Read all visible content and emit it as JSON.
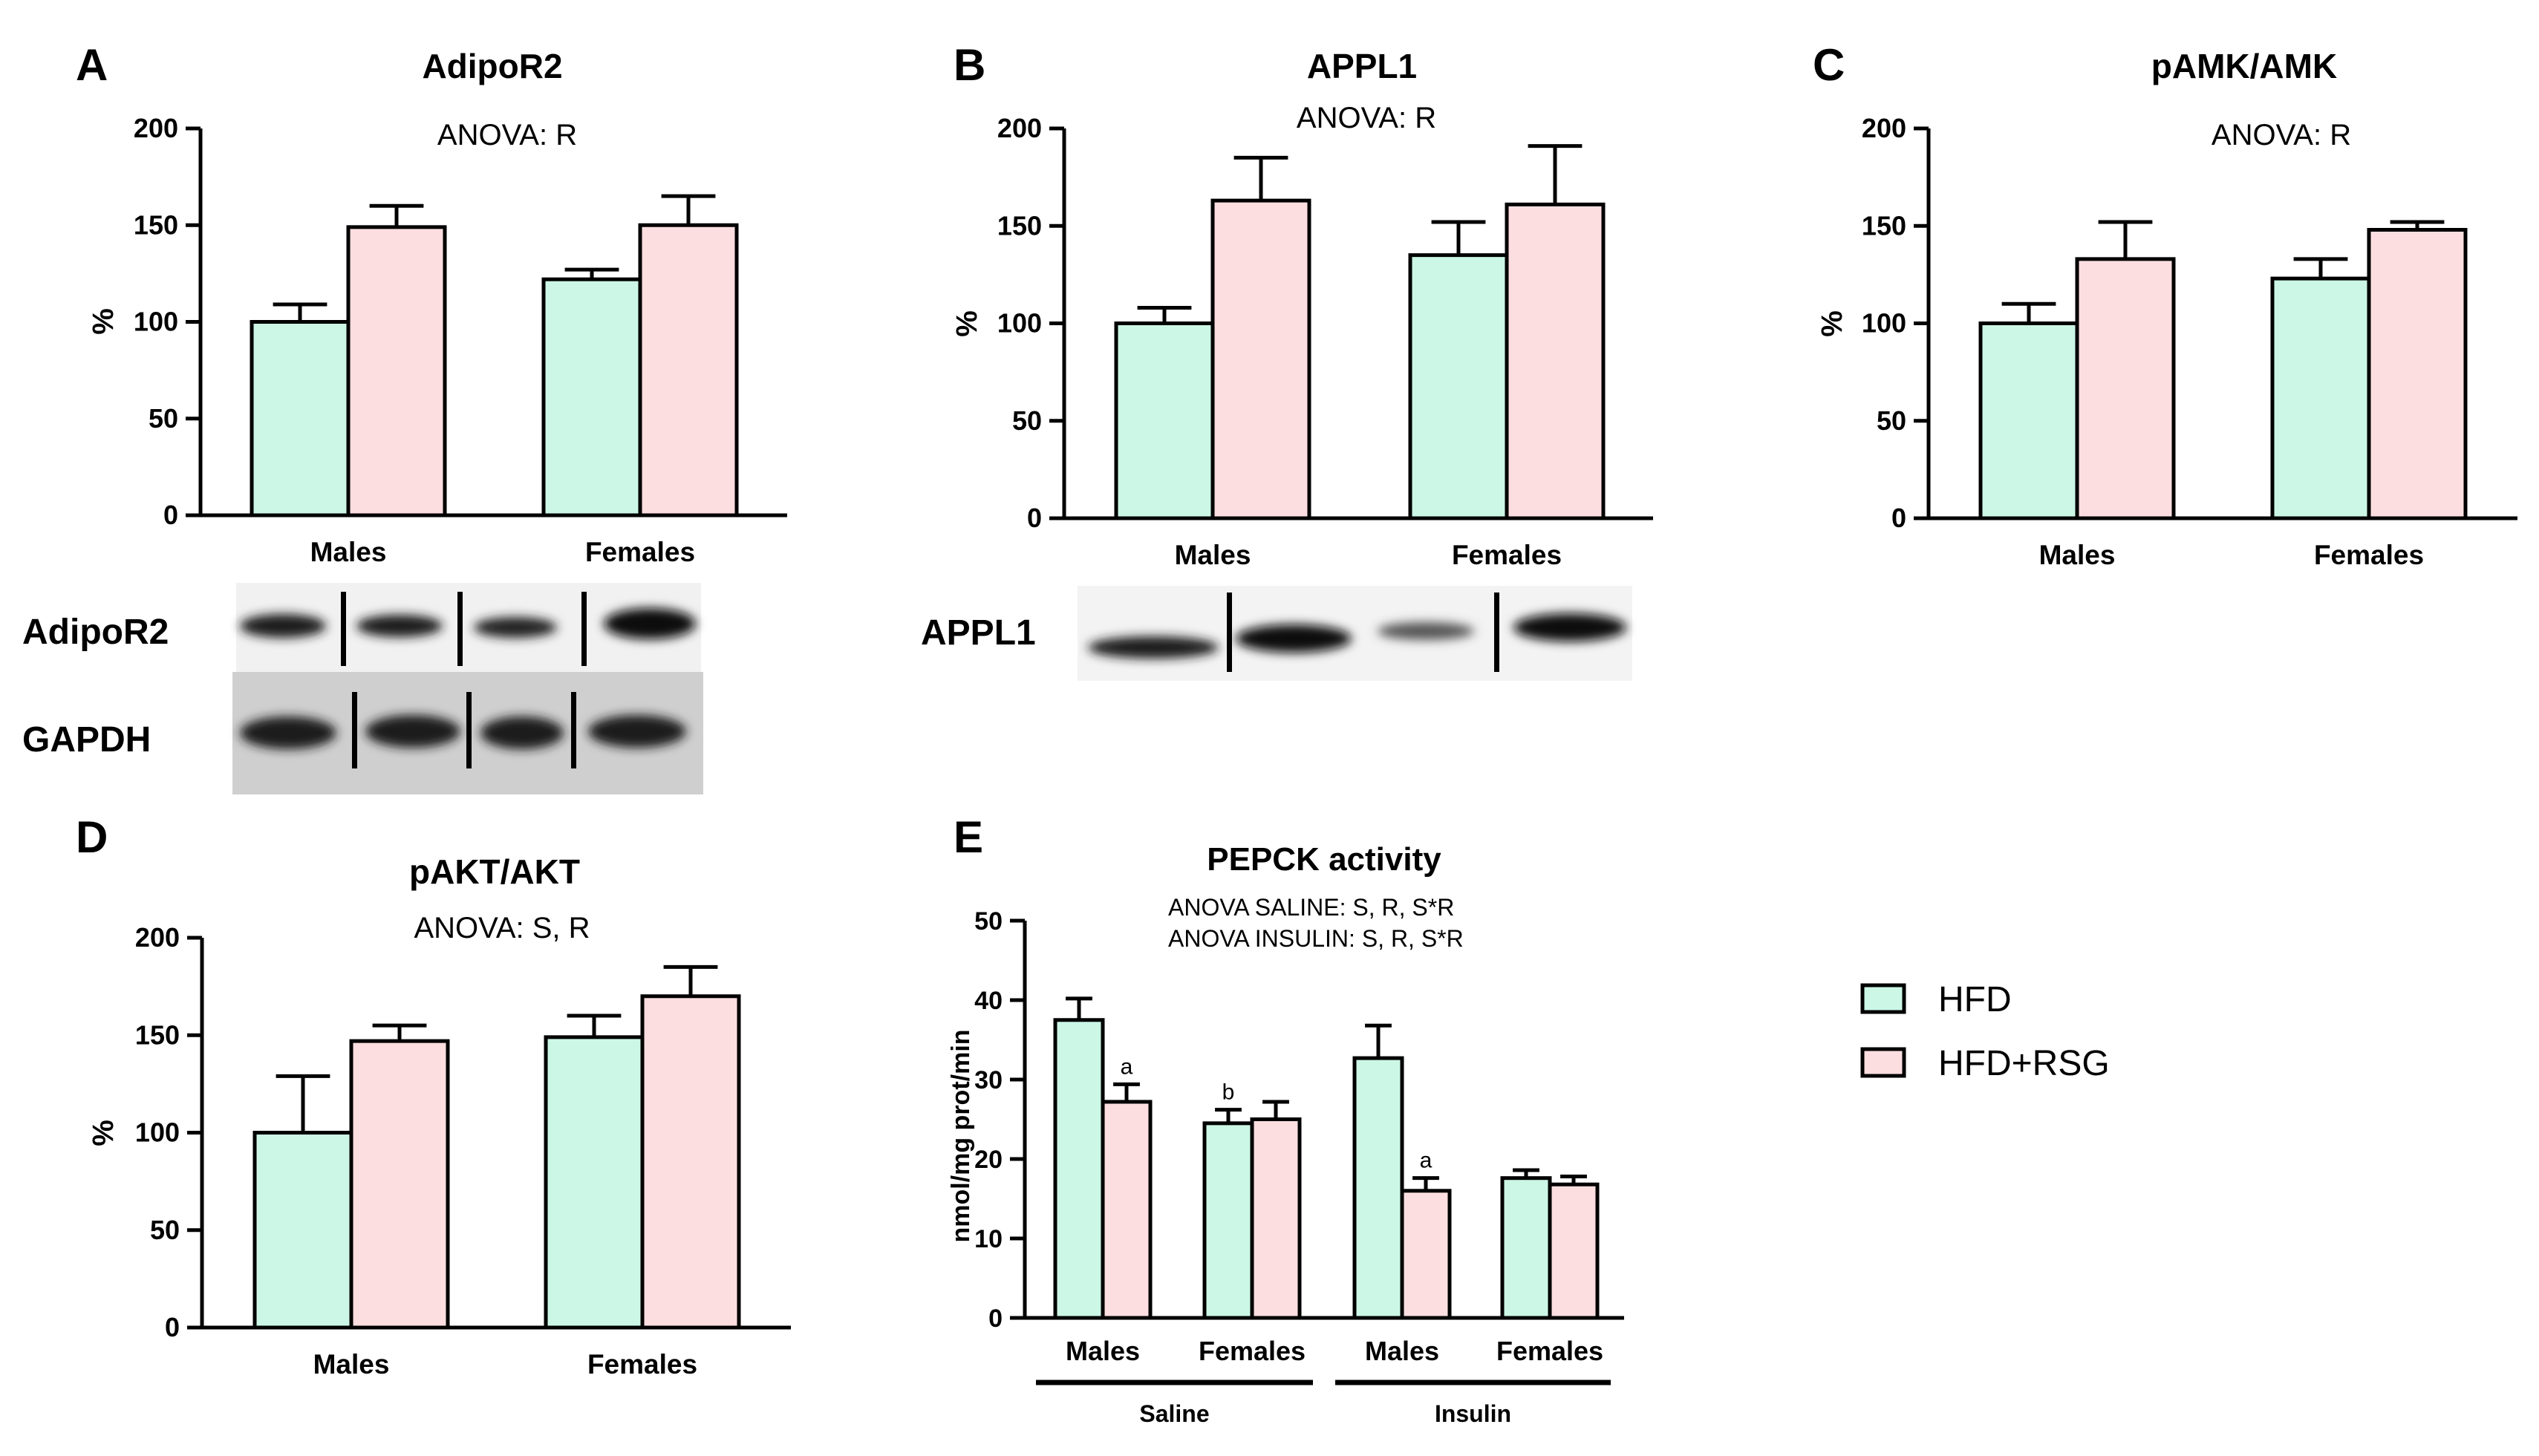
{
  "colors": {
    "hfd": "#ccf7e6",
    "rsg": "#fcdee0",
    "axis": "#000000"
  },
  "legend": {
    "items": [
      {
        "label": "HFD",
        "key": "hfd"
      },
      {
        "label": "HFD+RSG",
        "key": "rsg"
      }
    ]
  },
  "chart_data": [
    {
      "panel": "A",
      "title": "AdipoR2",
      "anova": [
        "ANOVA: R"
      ],
      "type": "bar",
      "ylabel": "%",
      "ylim": [
        0,
        200
      ],
      "yticks": [
        0,
        50,
        100,
        150,
        200
      ],
      "categories": [
        "Males",
        "Females"
      ],
      "series": [
        {
          "name": "HFD",
          "values": [
            100,
            122
          ],
          "errors": [
            9,
            5
          ],
          "sig": [
            "",
            ""
          ]
        },
        {
          "name": "HFD+RSG",
          "values": [
            149,
            150
          ],
          "errors": [
            11,
            15
          ],
          "sig": [
            "",
            ""
          ]
        }
      ]
    },
    {
      "panel": "B",
      "title": "APPL1",
      "anova": [
        "ANOVA: R"
      ],
      "type": "bar",
      "ylabel": "%",
      "ylim": [
        0,
        200
      ],
      "yticks": [
        0,
        50,
        100,
        150,
        200
      ],
      "categories": [
        "Males",
        "Females"
      ],
      "series": [
        {
          "name": "HFD",
          "values": [
            100,
            135
          ],
          "errors": [
            8,
            17
          ],
          "sig": [
            "",
            ""
          ]
        },
        {
          "name": "HFD+RSG",
          "values": [
            163,
            161
          ],
          "errors": [
            22,
            30
          ],
          "sig": [
            "",
            ""
          ]
        }
      ]
    },
    {
      "panel": "C",
      "title": "pAMK/AMK",
      "anova": [
        "ANOVA: R"
      ],
      "type": "bar",
      "ylabel": "%",
      "ylim": [
        0,
        200
      ],
      "yticks": [
        0,
        50,
        100,
        150,
        200
      ],
      "categories": [
        "Males",
        "Females"
      ],
      "series": [
        {
          "name": "HFD",
          "values": [
            100,
            123
          ],
          "errors": [
            10,
            10
          ],
          "sig": [
            "",
            ""
          ]
        },
        {
          "name": "HFD+RSG",
          "values": [
            133,
            148
          ],
          "errors": [
            19,
            4
          ],
          "sig": [
            "",
            ""
          ]
        }
      ]
    },
    {
      "panel": "D",
      "title": "pAKT/AKT",
      "anova": [
        "ANOVA: S, R"
      ],
      "type": "bar",
      "ylabel": "%",
      "ylim": [
        0,
        200
      ],
      "yticks": [
        0,
        50,
        100,
        150,
        200
      ],
      "categories": [
        "Males",
        "Females"
      ],
      "series": [
        {
          "name": "HFD",
          "values": [
            100,
            149
          ],
          "errors": [
            29,
            11
          ],
          "sig": [
            "",
            ""
          ]
        },
        {
          "name": "HFD+RSG",
          "values": [
            147,
            170
          ],
          "errors": [
            8,
            15
          ],
          "sig": [
            "",
            ""
          ]
        }
      ]
    },
    {
      "panel": "E",
      "title": "PEPCK activity",
      "anova": [
        "ANOVA SALINE: S, R, S*R",
        "ANOVA INSULIN: S, R, S*R"
      ],
      "type": "bar",
      "ylabel": "nmol/mg prot/min",
      "ylim": [
        0,
        50
      ],
      "yticks": [
        0,
        10,
        20,
        30,
        40,
        50
      ],
      "categories": [
        "Males",
        "Females",
        "Males",
        "Females"
      ],
      "groups": [
        {
          "label": "Saline",
          "span": [
            0,
            1
          ]
        },
        {
          "label": "Insulin",
          "span": [
            2,
            3
          ]
        }
      ],
      "series": [
        {
          "name": "HFD",
          "values": [
            37.5,
            24.5,
            32.7,
            17.6
          ],
          "errors": [
            2.7,
            1.7,
            4.1,
            1.0
          ],
          "sig": [
            "",
            "b",
            "",
            ""
          ]
        },
        {
          "name": "HFD+RSG",
          "values": [
            27.2,
            25.0,
            16.0,
            16.8
          ],
          "errors": [
            2.2,
            2.2,
            1.6,
            1.0
          ],
          "sig": [
            "a",
            "",
            "a",
            ""
          ]
        }
      ]
    }
  ],
  "blots": [
    {
      "label": "AdipoR2",
      "lanes": 4
    },
    {
      "label": "GAPDH",
      "lanes": 4
    },
    {
      "label": "APPL1",
      "lanes": 4
    }
  ]
}
